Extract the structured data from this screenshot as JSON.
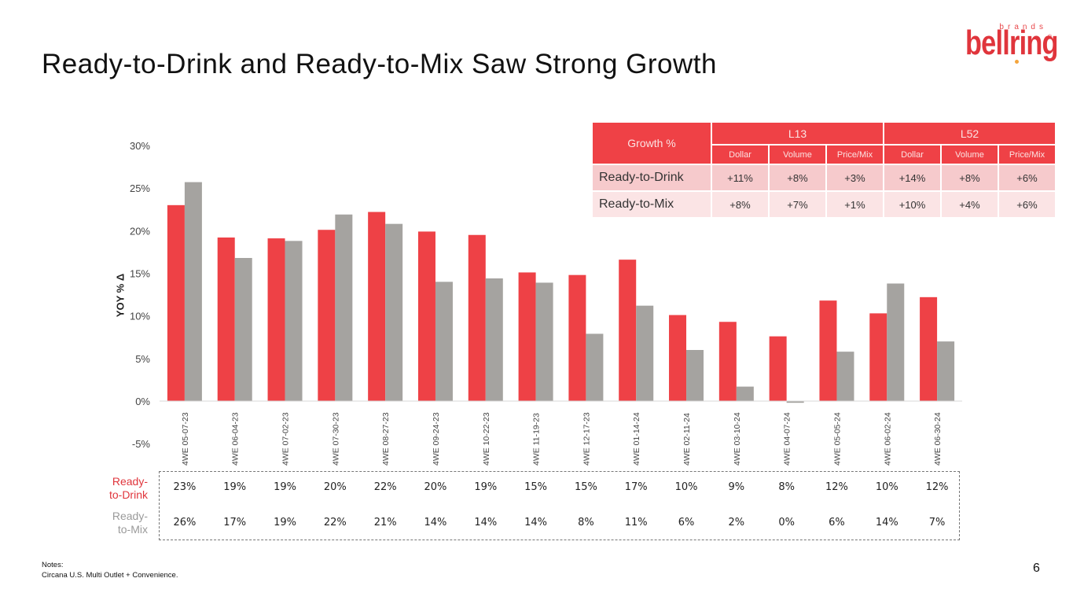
{
  "slide": {
    "title": "Ready-to-Drink and Ready-to-Mix Saw Strong Growth",
    "page_number": "6",
    "notes_label": "Notes:",
    "notes_text": "Circana U.S. Multi Outlet + Convenience."
  },
  "logo": {
    "word": "bellring",
    "sub": "brands",
    "reg": "®"
  },
  "colors": {
    "ready_to_drink": "#ee4146",
    "ready_to_mix": "#a5a3a0",
    "table_header": "#ef4146",
    "table_row_a": "#f6cacc",
    "table_row_b": "#fbe4e5"
  },
  "growth_table": {
    "header": "Growth %",
    "groups": [
      "L13",
      "L52"
    ],
    "subheaders": [
      "Dollar",
      "Volume",
      "Price/Mix",
      "Dollar",
      "Volume",
      "Price/Mix"
    ],
    "rows": [
      {
        "label": "Ready-to-Drink",
        "values": [
          "+11%",
          "+8%",
          "+3%",
          "+14%",
          "+8%",
          "+6%"
        ]
      },
      {
        "label": "Ready-to-Mix",
        "values": [
          "+8%",
          "+7%",
          "+1%",
          "+10%",
          "+4%",
          "+6%"
        ]
      }
    ]
  },
  "chart_data": {
    "type": "bar",
    "title": "",
    "xlabel": "",
    "ylabel": "YOY % Δ",
    "ylim": [
      -5,
      30
    ],
    "yticks": [
      -5,
      0,
      5,
      10,
      15,
      20,
      25,
      30
    ],
    "ytick_labels": [
      "-5%",
      "0%",
      "5%",
      "10%",
      "15%",
      "20%",
      "25%",
      "30%"
    ],
    "grid": false,
    "legend": "data-table-below",
    "categories": [
      "4WE 05-07-23",
      "4WE 06-04-23",
      "4WE 07-02-23",
      "4WE 07-30-23",
      "4WE 08-27-23",
      "4WE 09-24-23",
      "4WE 10-22-23",
      "4WE 11-19-23",
      "4WE 12-17-23",
      "4WE 01-14-24",
      "4WE 02-11-24",
      "4WE 03-10-24",
      "4WE 04-07-24",
      "4WE 05-05-24",
      "4WE 06-02-24",
      "4WE 06-30-24"
    ],
    "series": [
      {
        "name": "Ready-to-Drink",
        "label": "Ready-\nto-Drink",
        "label_lines": [
          "Ready-",
          "to-Drink"
        ],
        "color": "#ee4146",
        "values": [
          23.0,
          19.2,
          19.1,
          20.1,
          22.2,
          19.9,
          19.5,
          15.1,
          14.8,
          16.6,
          10.1,
          9.3,
          7.6,
          11.8,
          10.3,
          12.2
        ],
        "table_labels": [
          "23%",
          "19%",
          "19%",
          "20%",
          "22%",
          "20%",
          "19%",
          "15%",
          "15%",
          "17%",
          "10%",
          "9%",
          "8%",
          "12%",
          "10%",
          "12%"
        ]
      },
      {
        "name": "Ready-to-Mix",
        "label_lines": [
          "Ready-",
          "to-Mix"
        ],
        "color": "#a5a3a0",
        "values": [
          25.7,
          16.8,
          18.8,
          21.9,
          20.8,
          14.0,
          14.4,
          13.9,
          7.9,
          11.2,
          6.0,
          1.7,
          -0.2,
          5.8,
          13.8,
          7.0
        ],
        "table_labels": [
          "26%",
          "17%",
          "19%",
          "22%",
          "21%",
          "14%",
          "14%",
          "14%",
          "8%",
          "11%",
          "6%",
          "2%",
          "0%",
          "6%",
          "14%",
          "7%"
        ]
      }
    ]
  }
}
